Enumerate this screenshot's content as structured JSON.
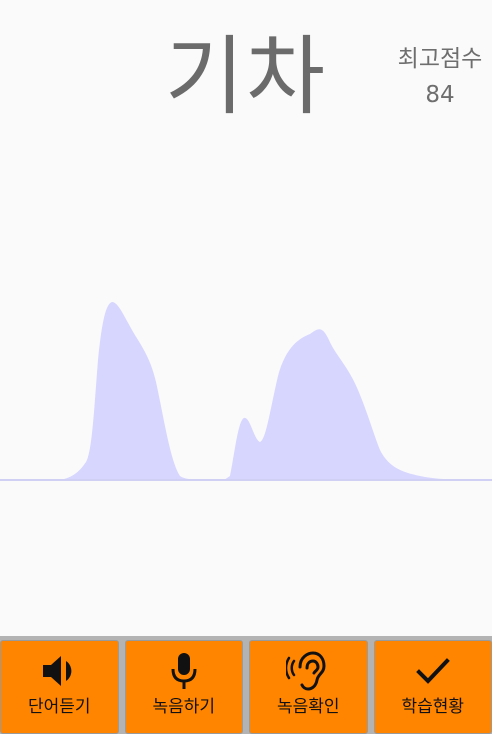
{
  "word": "기차",
  "best_score": {
    "label": "최고점수",
    "value": "84"
  },
  "colors": {
    "background": "#fafafa",
    "waveform": "#d6d6ff",
    "baseline": "#d0d0f4",
    "button": "#ff8400",
    "title_text": "#6b6b6b"
  },
  "toolbar": {
    "buttons": [
      {
        "label": "단어듣기",
        "icon": "speaker-icon"
      },
      {
        "label": "녹음하기",
        "icon": "microphone-icon"
      },
      {
        "label": "녹음확인",
        "icon": "ear-icon"
      },
      {
        "label": "학습현황",
        "icon": "checkmark-icon"
      }
    ]
  }
}
